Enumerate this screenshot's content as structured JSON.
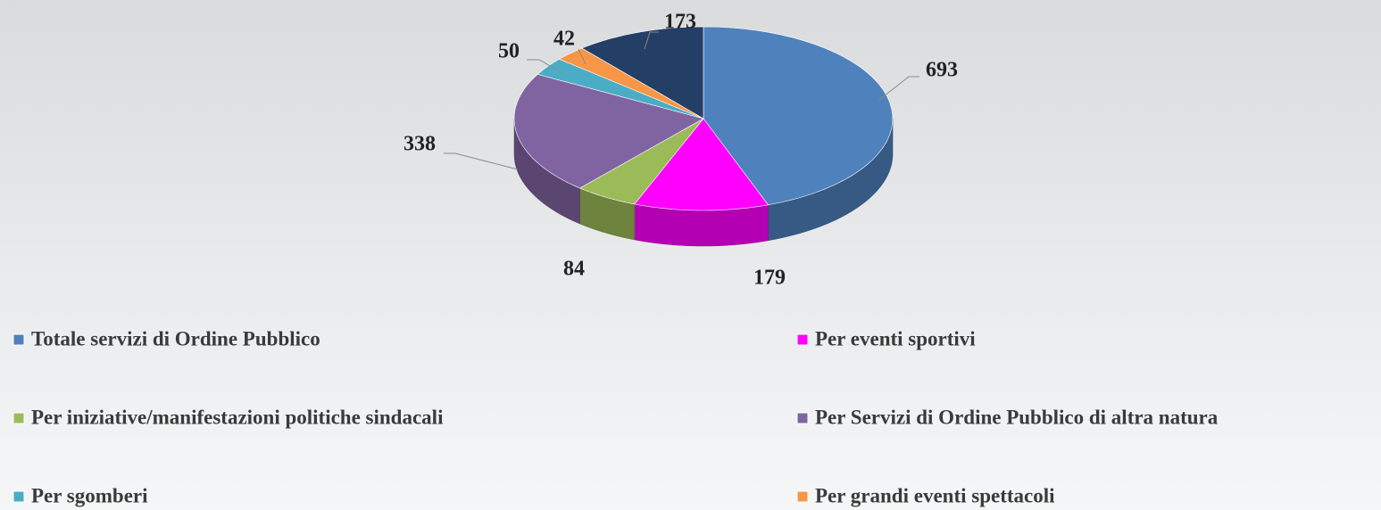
{
  "chart_data": {
    "type": "pie3d",
    "categories": [
      "Totale servizi di Ordine Pubblico",
      "Per eventi sportivi",
      "Per iniziative/manifestazioni politiche sindacali",
      "Per Servizi di Ordine Pubblico di altra natura",
      "Per sgomberi",
      "Per grandi eventi spettacoli",
      null
    ],
    "values": [
      693,
      179,
      84,
      338,
      50,
      42,
      173
    ],
    "colors": [
      "#4f81bd",
      "#ff00ff",
      "#9bbb59",
      "#8064a2",
      "#4bacc6",
      "#f79646",
      "#243f66"
    ]
  }
}
